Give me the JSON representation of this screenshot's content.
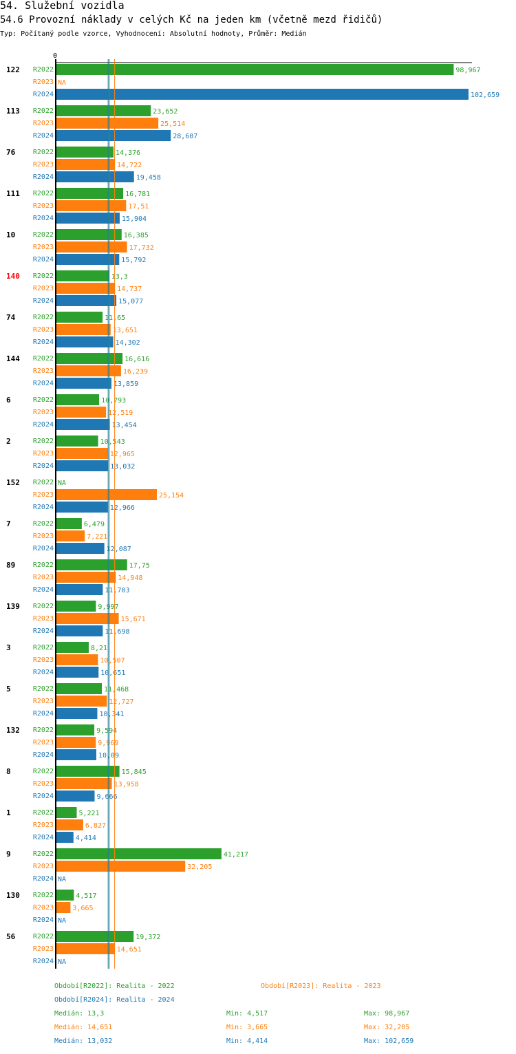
{
  "header": {
    "title": "54. Služební vozidla",
    "subtitle": "54.6 Provozní náklady v celých Kč na jeden km (včetně mezd řidičů)",
    "meta": "Typ: Počítaný podle vzorce, Vyhodnocení: Absolutní hodnoty, Průměr: Medián"
  },
  "colors": {
    "R2022": "#2ca02c",
    "R2023": "#ff7f0e",
    "R2024": "#1f77b4",
    "highlight": "#ff0000",
    "axis": "#000000"
  },
  "chart_data": {
    "type": "bar",
    "orientation": "horizontal",
    "axis_zero_label": "0",
    "xlim": [
      0,
      102659
    ],
    "series_names": [
      "R2022",
      "R2023",
      "R2024"
    ],
    "highlighted_category": "140",
    "groups": [
      {
        "label": "122",
        "values": [
          "98,967",
          "NA",
          "102,659"
        ]
      },
      {
        "label": "113",
        "values": [
          "23,652",
          "25,514",
          "28,607"
        ]
      },
      {
        "label": "76",
        "values": [
          "14,376",
          "14,722",
          "19,458"
        ]
      },
      {
        "label": "111",
        "values": [
          "16,781",
          "17,51",
          "15,904"
        ]
      },
      {
        "label": "10",
        "values": [
          "16,385",
          "17,732",
          "15,792"
        ]
      },
      {
        "label": "140",
        "values": [
          "13,3",
          "14,737",
          "15,077"
        ]
      },
      {
        "label": "74",
        "values": [
          "11,65",
          "13,651",
          "14,302"
        ]
      },
      {
        "label": "144",
        "values": [
          "16,616",
          "16,239",
          "13,859"
        ]
      },
      {
        "label": "6",
        "values": [
          "10,793",
          "12,519",
          "13,454"
        ]
      },
      {
        "label": "2",
        "values": [
          "10,543",
          "12,965",
          "13,032"
        ]
      },
      {
        "label": "152",
        "values": [
          "NA",
          "25,154",
          "12,966"
        ]
      },
      {
        "label": "7",
        "values": [
          "6,479",
          "7,221",
          "12,087"
        ]
      },
      {
        "label": "89",
        "values": [
          "17,75",
          "14,948",
          "11,703"
        ]
      },
      {
        "label": "139",
        "values": [
          "9,997",
          "15,671",
          "11,698"
        ]
      },
      {
        "label": "3",
        "values": [
          "8,21",
          "10,507",
          "10,651"
        ]
      },
      {
        "label": "5",
        "values": [
          "11,468",
          "12,727",
          "10,341"
        ]
      },
      {
        "label": "132",
        "values": [
          "9,594",
          "9,969",
          "10,09"
        ]
      },
      {
        "label": "8",
        "values": [
          "15,845",
          "13,958",
          "9,666"
        ]
      },
      {
        "label": "1",
        "values": [
          "5,221",
          "6,827",
          "4,414"
        ]
      },
      {
        "label": "9",
        "values": [
          "41,217",
          "32,205",
          "NA"
        ]
      },
      {
        "label": "130",
        "values": [
          "4,517",
          "3,665",
          "NA"
        ]
      },
      {
        "label": "56",
        "values": [
          "19,372",
          "14,651",
          "NA"
        ]
      }
    ],
    "median_lines": [
      {
        "series": "R2022",
        "value": 13.3
      },
      {
        "series": "R2023",
        "value": 14.651
      },
      {
        "series": "R2024",
        "value": 13.032
      }
    ]
  },
  "legend": {
    "period_r2022": "Období[R2022]: Realita - 2022",
    "period_r2023": "Období[R2023]: Realita - 2023",
    "period_r2024": "Období[R2024]: Realita - 2024",
    "stats": [
      {
        "series": "R2022",
        "median": "Medián: 13,3",
        "min": "Min: 4,517",
        "max": "Max: 98,967"
      },
      {
        "series": "R2023",
        "median": "Medián: 14,651",
        "min": "Min: 3,665",
        "max": "Max: 32,205"
      },
      {
        "series": "R2024",
        "median": "Medián: 13,032",
        "min": "Min: 4,414",
        "max": "Max: 102,659"
      }
    ]
  }
}
